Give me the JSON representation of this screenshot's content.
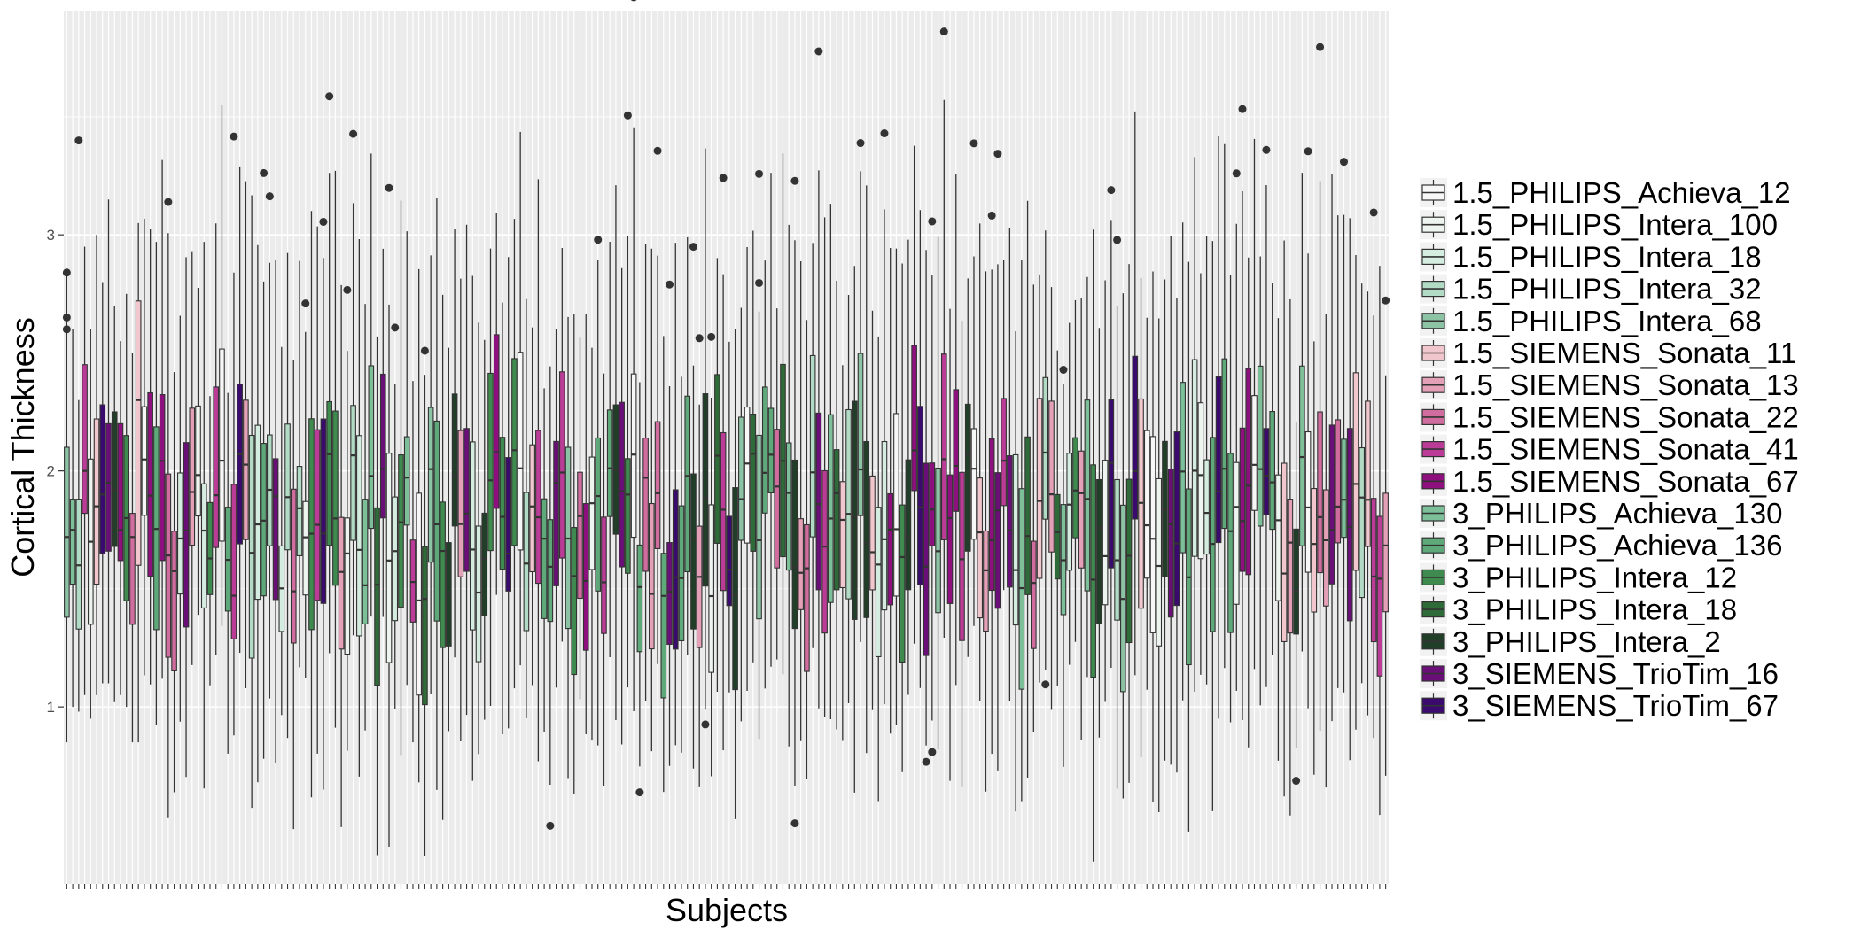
{
  "chart_data": {
    "type": "boxplot",
    "title": "",
    "xlabel": "Subjects",
    "ylabel": "Cortical Thickness",
    "ylim": [
      0.25,
      3.95
    ],
    "yticks": [
      1,
      2,
      3
    ],
    "ytick_labels": [
      "1",
      "2",
      "3"
    ],
    "grid": true,
    "legend_position": "right",
    "n_subjects": 222,
    "series": [
      {
        "name": "1.5_PHILIPS_Achieva_12",
        "color": "#f7f7f7"
      },
      {
        "name": "1.5_PHILIPS_Intera_100",
        "color": "#eef5f0"
      },
      {
        "name": "1.5_PHILIPS_Intera_18",
        "color": "#d5ede0"
      },
      {
        "name": "1.5_PHILIPS_Intera_32",
        "color": "#b2dbc5"
      },
      {
        "name": "1.5_PHILIPS_Intera_68",
        "color": "#8cc3a5"
      },
      {
        "name": "1.5_SIEMENS_Sonata_11",
        "color": "#f1c6cd"
      },
      {
        "name": "1.5_SIEMENS_Sonata_13",
        "color": "#e3a0b6"
      },
      {
        "name": "1.5_SIEMENS_Sonata_22",
        "color": "#d06c9e"
      },
      {
        "name": "1.5_SIEMENS_Sonata_41",
        "color": "#bb3c96"
      },
      {
        "name": "1.5_SIEMENS_Sonata_67",
        "color": "#8e0f7e"
      },
      {
        "name": "3_PHILIPS_Achieva_130",
        "color": "#7cbf99"
      },
      {
        "name": "3_PHILIPS_Achieva_136",
        "color": "#5ea87a"
      },
      {
        "name": "3_PHILIPS_Intera_12",
        "color": "#3f8a4e"
      },
      {
        "name": "3_PHILIPS_Intera_18",
        "color": "#2f6b38"
      },
      {
        "name": "3_PHILIPS_Intera_2",
        "color": "#213f28"
      },
      {
        "name": "3_SIEMENS_TrioTim_16",
        "color": "#6a0f78"
      },
      {
        "name": "3_SIEMENS_TrioTim_67",
        "color": "#3a0a6e"
      }
    ],
    "boxes": [
      {
        "group": 4,
        "whisker_low": 0.85,
        "q1": 1.38,
        "median": 1.72,
        "q3": 2.1,
        "whisker_high": 2.85,
        "outliers": [
          2.6,
          2.65,
          2.84
        ]
      },
      {
        "group": 10,
        "whisker_low": 1.0,
        "q1": 1.52,
        "median": 1.75,
        "q3": 1.88,
        "whisker_high": 2.6,
        "outliers": []
      },
      {
        "group": 3,
        "whisker_low": 0.98,
        "q1": 1.33,
        "median": 1.6,
        "q3": 1.88,
        "whisker_high": 2.3,
        "outliers": [
          3.4
        ]
      },
      {
        "group": 8,
        "whisker_low": 1.05,
        "q1": 1.82,
        "median": 2.0,
        "q3": 2.45,
        "whisker_high": 2.95,
        "outliers": []
      },
      {
        "group": 1,
        "whisker_low": 0.95,
        "q1": 1.35,
        "median": 1.7,
        "q3": 2.05,
        "whisker_high": 2.6,
        "outliers": []
      },
      {
        "group": 5,
        "whisker_low": 1.05,
        "q1": 1.52,
        "median": 1.85,
        "q3": 2.22,
        "whisker_high": 3.0,
        "outliers": []
      },
      {
        "group": 16,
        "whisker_low": 1.1,
        "q1": 1.65,
        "median": 1.9,
        "q3": 2.28,
        "whisker_high": 2.8,
        "outliers": []
      },
      {
        "group": 15,
        "whisker_low": 1.1,
        "q1": 1.66,
        "median": 1.95,
        "q3": 2.2,
        "whisker_high": 3.15,
        "outliers": []
      },
      {
        "group": 14,
        "whisker_low": 1.02,
        "q1": 1.68,
        "median": 1.92,
        "q3": 2.25,
        "whisker_high": 2.7,
        "outliers": []
      },
      {
        "group": 9,
        "whisker_low": 1.05,
        "q1": 1.62,
        "median": 1.75,
        "q3": 2.2,
        "whisker_high": 2.55,
        "outliers": []
      },
      {
        "group": 12,
        "whisker_low": 1.0,
        "q1": 1.45,
        "median": 1.8,
        "q3": 2.15,
        "whisker_high": 2.75,
        "outliers": []
      },
      {
        "group": 7,
        "whisker_low": 0.85,
        "q1": 1.35,
        "median": 1.72,
        "q3": 1.82,
        "whisker_high": 2.5,
        "outliers": []
      },
      {
        "group": 5,
        "whisker_low": 0.85,
        "q1": 1.6,
        "median": 2.3,
        "q3": 2.72,
        "whisker_high": 3.05,
        "outliers": []
      }
    ]
  },
  "legend": {
    "title": "",
    "items": [
      "1.5_PHILIPS_Achieva_12",
      "1.5_PHILIPS_Intera_100",
      "1.5_PHILIPS_Intera_18",
      "1.5_PHILIPS_Intera_32",
      "1.5_PHILIPS_Intera_68",
      "1.5_SIEMENS_Sonata_11",
      "1.5_SIEMENS_Sonata_13",
      "1.5_SIEMENS_Sonata_22",
      "1.5_SIEMENS_Sonata_41",
      "1.5_SIEMENS_Sonata_67",
      "3_PHILIPS_Achieva_130",
      "3_PHILIPS_Achieva_136",
      "3_PHILIPS_Intera_12",
      "3_PHILIPS_Intera_18",
      "3_PHILIPS_Intera_2",
      "3_SIEMENS_TrioTim_16",
      "3_SIEMENS_TrioTim_67"
    ]
  },
  "colors": {
    "panel_background": "#ebebeb",
    "major_grid": "#ffffff",
    "box_outline": "#333333",
    "outlier": "#333333"
  }
}
